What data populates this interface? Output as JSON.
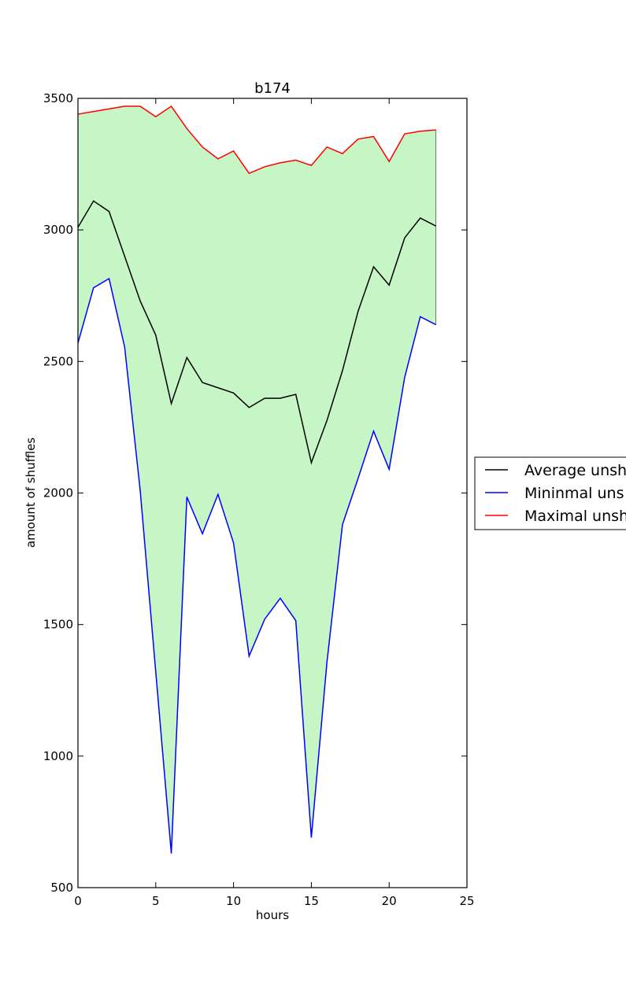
{
  "chart_data": {
    "type": "line",
    "title": "b174",
    "xlabel": "hours",
    "ylabel": "amount of shuffles",
    "xlim": [
      0,
      25
    ],
    "ylim": [
      500,
      3500
    ],
    "xticks": [
      0,
      5,
      10,
      15,
      20,
      25
    ],
    "yticks": [
      500,
      1000,
      1500,
      2000,
      2500,
      3000,
      3500
    ],
    "grid": false,
    "legend_position": "right, outside plot (clipped)",
    "fill_between": {
      "lower": "Mininmal uns",
      "upper": "Maximal unsh",
      "color": "#c6f5c6"
    },
    "x": [
      0,
      1,
      2,
      3,
      4,
      5,
      6,
      7,
      8,
      9,
      10,
      11,
      12,
      13,
      14,
      15,
      16,
      17,
      18,
      19,
      20,
      21,
      22,
      23
    ],
    "series": [
      {
        "name": "Average unsh",
        "color": "#000000",
        "values": [
          3010,
          3110,
          3070,
          2900,
          2730,
          2600,
          2340,
          2515,
          2420,
          2400,
          2380,
          2325,
          2360,
          2360,
          2375,
          2115,
          2275,
          2465,
          2690,
          2860,
          2790,
          2970,
          3045,
          3015
        ]
      },
      {
        "name": "Mininmal uns",
        "color": "#0000ff",
        "values": [
          2570,
          2780,
          2815,
          2555,
          2010,
          1320,
          630,
          1985,
          1845,
          1995,
          1810,
          1380,
          1520,
          1600,
          1515,
          690,
          1355,
          1880,
          2055,
          2235,
          2090,
          2440,
          2670,
          2640
        ]
      },
      {
        "name": "Maximal unsh",
        "color": "#ff0000",
        "values": [
          3440,
          3450,
          3460,
          3470,
          3470,
          3430,
          3470,
          3385,
          3315,
          3270,
          3300,
          3215,
          3240,
          3255,
          3265,
          3245,
          3315,
          3290,
          3345,
          3355,
          3260,
          3365,
          3375,
          3380
        ]
      }
    ]
  }
}
